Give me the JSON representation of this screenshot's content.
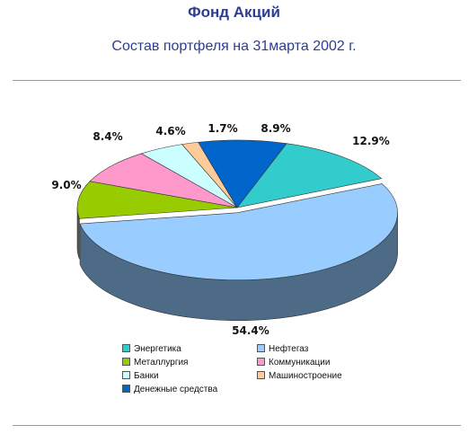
{
  "header": {
    "title": "Фонд Акций",
    "subtitle": "Состав портфеля на 31марта 2002 г."
  },
  "chart_data": {
    "type": "pie",
    "style": "3d-exploded",
    "legend_position": "bottom",
    "slices": [
      {
        "name": "Энергетика",
        "value": 12.9,
        "label": "12.9%",
        "color": "#33cccc"
      },
      {
        "name": "Нефтегаз",
        "value": 54.4,
        "label": "54.4%",
        "color": "#99ccff"
      },
      {
        "name": "Металлургия",
        "value": 9.0,
        "label": "9.0%",
        "color": "#99cc00"
      },
      {
        "name": "Коммуникации",
        "value": 8.4,
        "label": "8.4%",
        "color": "#ff99cc"
      },
      {
        "name": "Банки",
        "value": 4.6,
        "label": "4.6%",
        "color": "#ccffff"
      },
      {
        "name": "Машиностроение",
        "value": 1.7,
        "label": "1.7%",
        "color": "#ffcc99"
      },
      {
        "name": "Денежные средства",
        "value": 8.9,
        "label": "8.9%",
        "color": "#0066cc"
      }
    ]
  }
}
